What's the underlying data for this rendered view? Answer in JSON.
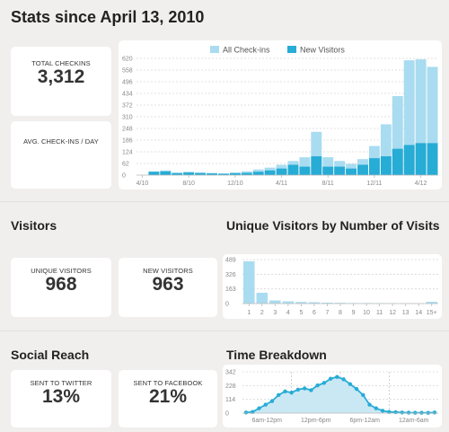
{
  "page_title": "Stats since April 13, 2010",
  "summary": {
    "total_checkins_label": "TOTAL CHECKINS",
    "total_checkins_value": "3,312",
    "avg_label": "AVG. CHECK-INS / DAY",
    "avg_value": ""
  },
  "visitors": {
    "heading": "Visitors",
    "unique_label": "UNIQUE VISITORS",
    "unique_value": "968",
    "new_label": "NEW VISITORS",
    "new_value": "963"
  },
  "unique_by_visits_heading": "Unique Visitors by Number of Visits",
  "social": {
    "heading": "Social Reach",
    "twitter_label": "SENT TO TWITTER",
    "twitter_value": "13%",
    "facebook_label": "SENT TO FACEBOOK",
    "facebook_value": "21%"
  },
  "time_breakdown_heading": "Time Breakdown",
  "colors": {
    "light": "#a9dcf0",
    "dark": "#27acd6",
    "area": "#c9e8f4"
  },
  "chart_data": [
    {
      "id": "checkins",
      "type": "bar",
      "legend": [
        "All Check-ins",
        "New Visitors"
      ],
      "legend_position": "top-right",
      "yticks": [
        "0",
        "62",
        "124",
        "186",
        "248",
        "310",
        "372",
        "434",
        "496",
        "558",
        "620"
      ],
      "ylim": [
        0,
        620
      ],
      "xtick_labels": [
        "4/10",
        "8/10",
        "12/10",
        "4/11",
        "8/11",
        "12/11",
        "4/12"
      ],
      "xtick_index": [
        0,
        4,
        8,
        12,
        16,
        20,
        24
      ],
      "series": [
        {
          "name": "All Check-ins",
          "values": [
            0,
            20,
            25,
            15,
            18,
            15,
            12,
            10,
            15,
            20,
            30,
            40,
            55,
            75,
            95,
            230,
            95,
            75,
            60,
            85,
            155,
            270,
            420,
            610,
            615,
            575
          ]
        },
        {
          "name": "New Visitors",
          "values": [
            0,
            18,
            20,
            10,
            14,
            11,
            9,
            7,
            10,
            12,
            18,
            25,
            35,
            55,
            45,
            100,
            45,
            45,
            35,
            55,
            90,
            100,
            140,
            160,
            170,
            170
          ]
        }
      ]
    },
    {
      "id": "visits",
      "type": "bar",
      "yticks": [
        "0",
        "163",
        "326",
        "489"
      ],
      "ylim": [
        0,
        489
      ],
      "categories": [
        "1",
        "2",
        "3",
        "4",
        "5",
        "6",
        "7",
        "8",
        "9",
        "10",
        "11",
        "12",
        "13",
        "14",
        "15+"
      ],
      "values": [
        470,
        120,
        35,
        25,
        18,
        15,
        10,
        8,
        6,
        6,
        5,
        4,
        3,
        2,
        20
      ]
    },
    {
      "id": "time",
      "type": "area",
      "yticks": [
        "0",
        "114",
        "228",
        "342"
      ],
      "ylim": [
        0,
        342
      ],
      "xtick_labels": [
        "6am-12pm",
        "12pm-6pm",
        "6pm-12am",
        "12am-6am"
      ],
      "values": [
        5,
        10,
        40,
        70,
        100,
        150,
        180,
        170,
        195,
        205,
        190,
        230,
        250,
        285,
        300,
        280,
        240,
        200,
        150,
        70,
        40,
        20,
        10,
        8,
        5,
        4,
        3,
        3,
        2,
        5
      ]
    }
  ]
}
